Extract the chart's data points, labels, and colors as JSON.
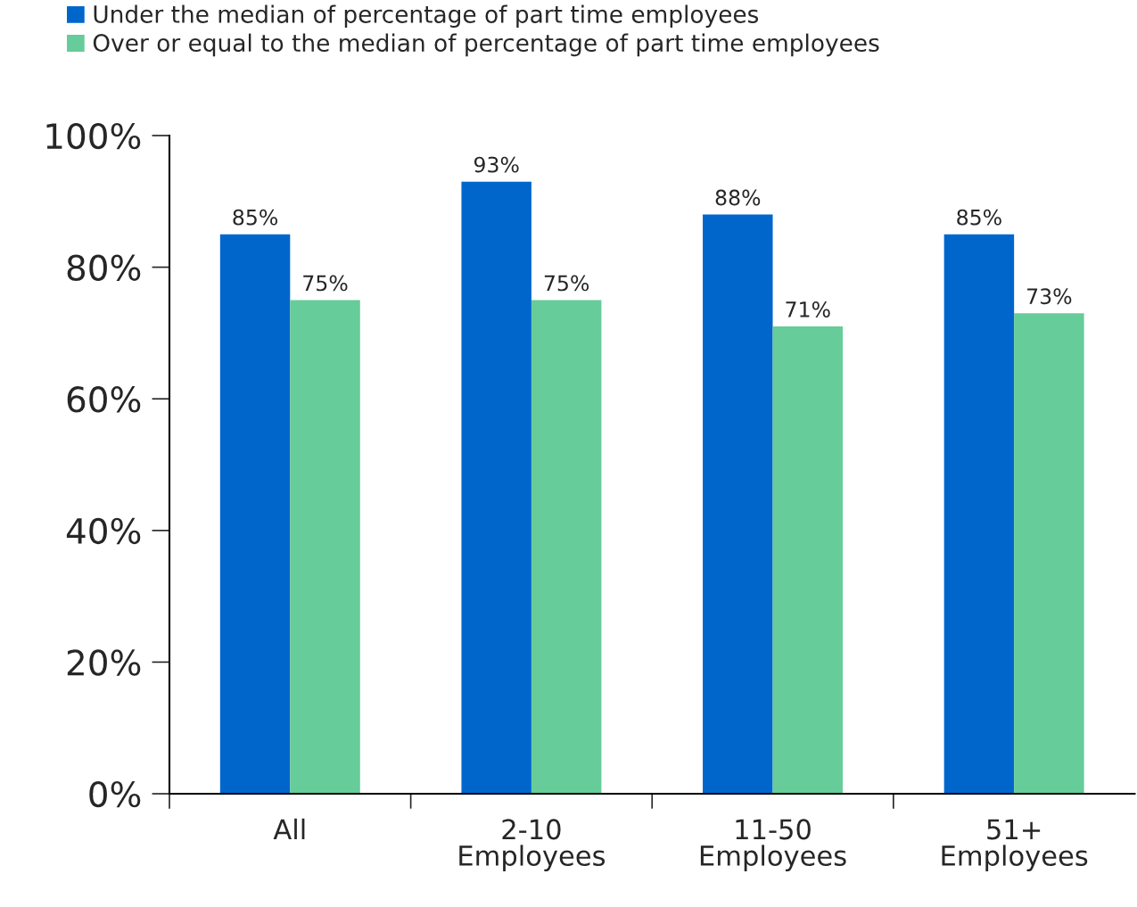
{
  "chart_data": {
    "type": "bar",
    "categories": [
      "All",
      "2-10\nEmployees",
      "11-50\nEmployees",
      "51+\nEmployees"
    ],
    "series": [
      {
        "name": "Under the median of percentage of part time employees",
        "color": "#0066cc",
        "values": [
          85,
          93,
          88,
          85
        ],
        "value_labels": [
          "85%",
          "93%",
          "88%",
          "85%"
        ]
      },
      {
        "name": "Over or equal to the median of percentage of part time employees",
        "color": "#66cc99",
        "values": [
          75,
          75,
          71,
          73
        ],
        "value_labels": [
          "75%",
          "75%",
          "71%",
          "73%"
        ]
      }
    ],
    "ylim": [
      0,
      100
    ],
    "yticks": [
      {
        "value": 0,
        "label": "0%"
      },
      {
        "value": 20,
        "label": "20%"
      },
      {
        "value": 40,
        "label": "40%"
      },
      {
        "value": 60,
        "label": "60%"
      },
      {
        "value": 80,
        "label": "80%"
      },
      {
        "value": 100,
        "label": "100%"
      }
    ],
    "grid": false,
    "legend": "top left"
  }
}
